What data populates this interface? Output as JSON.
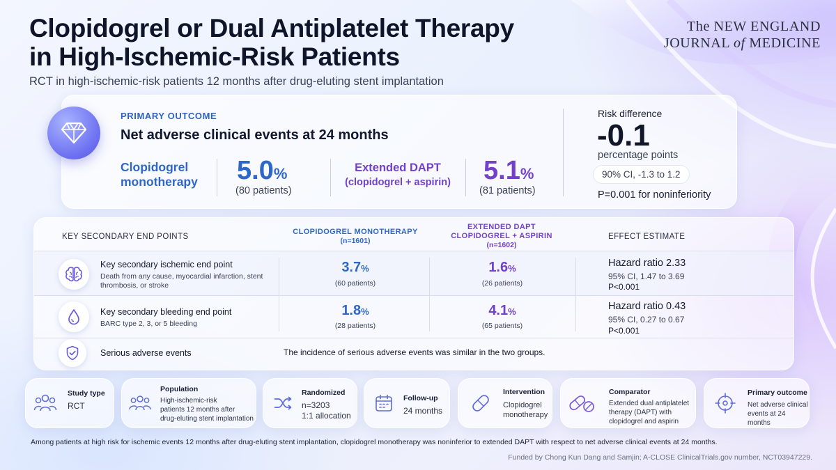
{
  "header": {
    "title_line1": "Clopidogrel or Dual Antiplatelet Therapy",
    "title_line2": "in High-Ischemic-Risk Patients",
    "subtitle": "RCT in high-ischemic-risk patients 12 months after drug-eluting stent implantation",
    "journal_the": "The",
    "journal_new_england": "NEW ENGLAND",
    "journal_journal": "JOURNAL",
    "journal_of": "of",
    "journal_medicine": "MEDICINE"
  },
  "primary": {
    "label": "PRIMARY OUTCOME",
    "title": "Net adverse clinical events at 24 months",
    "arm1_name_line1": "Clopidogrel",
    "arm1_name_line2": "monotherapy",
    "arm1_value": "5.0",
    "arm1_patients": "(80 patients)",
    "arm2_name_line1": "Extended DAPT",
    "arm2_name_line2": "(clopidogrel + aspirin)",
    "arm2_value": "5.1",
    "arm2_patients": "(81 patients)",
    "percent_sign": "%",
    "risk_label": "Risk difference",
    "risk_value": "-0.1",
    "risk_unit": "percentage points",
    "risk_ci": "90% CI, -1.3 to 1.2",
    "risk_p": "P=0.001 for noninferiority"
  },
  "secondary": {
    "header_endpoints": "KEY SECONDARY END POINTS",
    "header_arm1": "CLOPIDOGREL MONOTHERAPY",
    "header_arm1_n": "(n=1601)",
    "header_arm2_line1": "EXTENDED DAPT",
    "header_arm2_line2": "CLOPIDOGREL + ASPIRIN",
    "header_arm2_n": "(n=1602)",
    "header_effect": "EFFECT ESTIMATE",
    "rows": [
      {
        "icon": "brain-icon",
        "title": "Key secondary ischemic end point",
        "desc": "Death from any cause, myocardial infarction, stent thrombosis, or stroke",
        "arm1_value": "3.7",
        "arm1_patients": "(60 patients)",
        "arm2_value": "1.6",
        "arm2_patients": "(26 patients)",
        "hr": "Hazard ratio 2.33",
        "ci": "95% CI, 1.47 to 3.69",
        "p": "P<0.001"
      },
      {
        "icon": "drop-icon",
        "title": "Key secondary bleeding end point",
        "desc": "BARC type 2, 3, or 5 bleeding",
        "arm1_value": "1.8",
        "arm1_patients": "(28 patients)",
        "arm2_value": "4.1",
        "arm2_patients": "(65 patients)",
        "hr": "Hazard ratio 0.43",
        "ci": "95% CI, 0.27 to 0.67",
        "p": "P<0.001"
      }
    ],
    "sae_icon": "shield-check-icon",
    "sae_title": "Serious adverse events",
    "sae_text": "The incidence of serious adverse events was similar in the two groups."
  },
  "summary_cards": [
    {
      "icon": "people-icon",
      "title": "Study type",
      "lines": [
        "RCT"
      ]
    },
    {
      "icon": "population-icon",
      "title": "Population",
      "lines": [
        "High-ischemic-risk",
        "patients 12 months after",
        "drug-eluting stent implantation"
      ]
    },
    {
      "icon": "shuffle-icon",
      "title": "Randomized",
      "lines": [
        "n=3203",
        "1:1 allocation"
      ]
    },
    {
      "icon": "calendar-icon",
      "title": "Follow-up",
      "lines": [
        "24 months"
      ]
    },
    {
      "icon": "pill-icon",
      "title": "Intervention",
      "lines": [
        "Clopidogrel",
        "monotherapy"
      ]
    },
    {
      "icon": "pills-icon",
      "title": "Comparator",
      "lines": [
        "Extended dual antiplatelet",
        "therapy (DAPT) with",
        "clopidogrel and aspirin"
      ]
    },
    {
      "icon": "target-icon",
      "title": "Primary outcome",
      "lines": [
        "Net adverse clinical",
        "events at 24 months"
      ]
    }
  ],
  "footer": {
    "conclusion": "Among patients at high risk for ischemic events 12 months after drug-eluting stent implantation, clopidogrel monotherapy was noninferior to extended DAPT with respect to net adverse clinical events at 24 months.",
    "funding": "Funded by Chong Kun Dang and Samjin; A-CLOSE ClinicalTrials.gov number, NCT03947229."
  },
  "colors": {
    "clopidogrel_blue": "#2f67c8",
    "dapt_purple": "#7340c8",
    "accent_violet": "#6b6ef0"
  }
}
